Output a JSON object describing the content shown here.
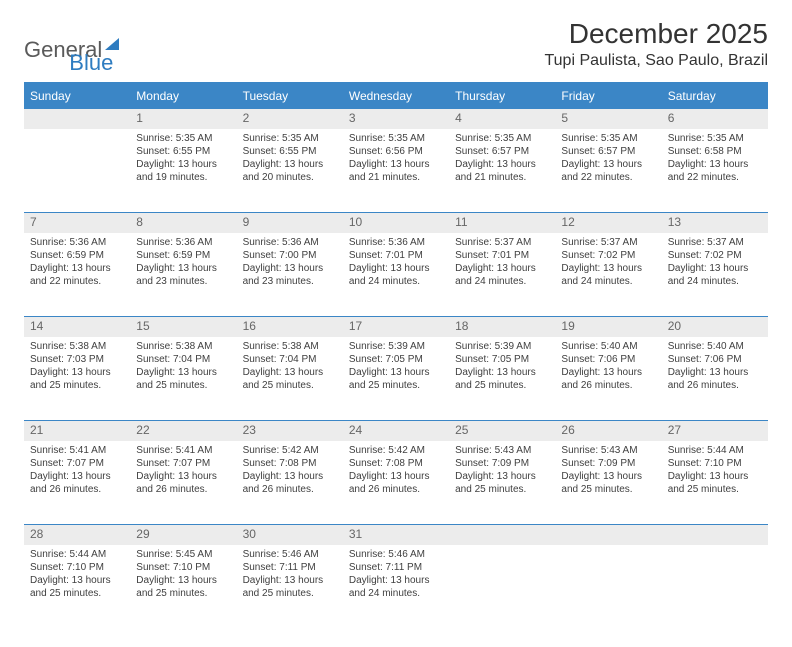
{
  "logo": {
    "word1": "General",
    "word2": "Blue"
  },
  "title": "December 2025",
  "location": "Tupi Paulista, Sao Paulo, Brazil",
  "accent_color": "#3b86c6",
  "daynum_bg": "#ececec",
  "weekdays": [
    "Sunday",
    "Monday",
    "Tuesday",
    "Wednesday",
    "Thursday",
    "Friday",
    "Saturday"
  ],
  "weeks": [
    [
      null,
      {
        "n": "1",
        "sr": "5:35 AM",
        "ss": "6:55 PM",
        "dl": "13 hours and 19 minutes."
      },
      {
        "n": "2",
        "sr": "5:35 AM",
        "ss": "6:55 PM",
        "dl": "13 hours and 20 minutes."
      },
      {
        "n": "3",
        "sr": "5:35 AM",
        "ss": "6:56 PM",
        "dl": "13 hours and 21 minutes."
      },
      {
        "n": "4",
        "sr": "5:35 AM",
        "ss": "6:57 PM",
        "dl": "13 hours and 21 minutes."
      },
      {
        "n": "5",
        "sr": "5:35 AM",
        "ss": "6:57 PM",
        "dl": "13 hours and 22 minutes."
      },
      {
        "n": "6",
        "sr": "5:35 AM",
        "ss": "6:58 PM",
        "dl": "13 hours and 22 minutes."
      }
    ],
    [
      {
        "n": "7",
        "sr": "5:36 AM",
        "ss": "6:59 PM",
        "dl": "13 hours and 22 minutes."
      },
      {
        "n": "8",
        "sr": "5:36 AM",
        "ss": "6:59 PM",
        "dl": "13 hours and 23 minutes."
      },
      {
        "n": "9",
        "sr": "5:36 AM",
        "ss": "7:00 PM",
        "dl": "13 hours and 23 minutes."
      },
      {
        "n": "10",
        "sr": "5:36 AM",
        "ss": "7:01 PM",
        "dl": "13 hours and 24 minutes."
      },
      {
        "n": "11",
        "sr": "5:37 AM",
        "ss": "7:01 PM",
        "dl": "13 hours and 24 minutes."
      },
      {
        "n": "12",
        "sr": "5:37 AM",
        "ss": "7:02 PM",
        "dl": "13 hours and 24 minutes."
      },
      {
        "n": "13",
        "sr": "5:37 AM",
        "ss": "7:02 PM",
        "dl": "13 hours and 24 minutes."
      }
    ],
    [
      {
        "n": "14",
        "sr": "5:38 AM",
        "ss": "7:03 PM",
        "dl": "13 hours and 25 minutes."
      },
      {
        "n": "15",
        "sr": "5:38 AM",
        "ss": "7:04 PM",
        "dl": "13 hours and 25 minutes."
      },
      {
        "n": "16",
        "sr": "5:38 AM",
        "ss": "7:04 PM",
        "dl": "13 hours and 25 minutes."
      },
      {
        "n": "17",
        "sr": "5:39 AM",
        "ss": "7:05 PM",
        "dl": "13 hours and 25 minutes."
      },
      {
        "n": "18",
        "sr": "5:39 AM",
        "ss": "7:05 PM",
        "dl": "13 hours and 25 minutes."
      },
      {
        "n": "19",
        "sr": "5:40 AM",
        "ss": "7:06 PM",
        "dl": "13 hours and 26 minutes."
      },
      {
        "n": "20",
        "sr": "5:40 AM",
        "ss": "7:06 PM",
        "dl": "13 hours and 26 minutes."
      }
    ],
    [
      {
        "n": "21",
        "sr": "5:41 AM",
        "ss": "7:07 PM",
        "dl": "13 hours and 26 minutes."
      },
      {
        "n": "22",
        "sr": "5:41 AM",
        "ss": "7:07 PM",
        "dl": "13 hours and 26 minutes."
      },
      {
        "n": "23",
        "sr": "5:42 AM",
        "ss": "7:08 PM",
        "dl": "13 hours and 26 minutes."
      },
      {
        "n": "24",
        "sr": "5:42 AM",
        "ss": "7:08 PM",
        "dl": "13 hours and 26 minutes."
      },
      {
        "n": "25",
        "sr": "5:43 AM",
        "ss": "7:09 PM",
        "dl": "13 hours and 25 minutes."
      },
      {
        "n": "26",
        "sr": "5:43 AM",
        "ss": "7:09 PM",
        "dl": "13 hours and 25 minutes."
      },
      {
        "n": "27",
        "sr": "5:44 AM",
        "ss": "7:10 PM",
        "dl": "13 hours and 25 minutes."
      }
    ],
    [
      {
        "n": "28",
        "sr": "5:44 AM",
        "ss": "7:10 PM",
        "dl": "13 hours and 25 minutes."
      },
      {
        "n": "29",
        "sr": "5:45 AM",
        "ss": "7:10 PM",
        "dl": "13 hours and 25 minutes."
      },
      {
        "n": "30",
        "sr": "5:46 AM",
        "ss": "7:11 PM",
        "dl": "13 hours and 25 minutes."
      },
      {
        "n": "31",
        "sr": "5:46 AM",
        "ss": "7:11 PM",
        "dl": "13 hours and 24 minutes."
      },
      null,
      null,
      null
    ]
  ],
  "labels": {
    "sunrise": "Sunrise:",
    "sunset": "Sunset:",
    "daylight": "Daylight:"
  }
}
